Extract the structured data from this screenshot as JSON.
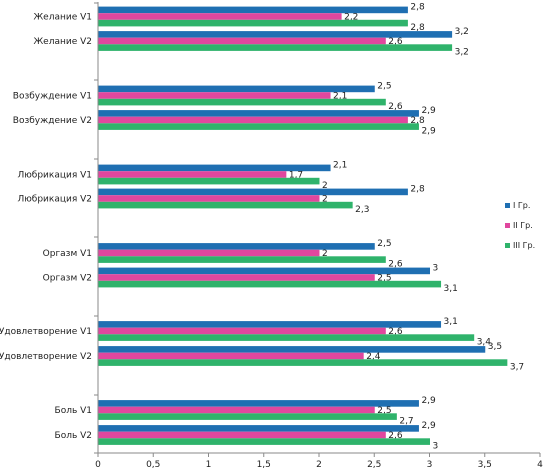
{
  "chart_data": {
    "type": "bar",
    "orientation": "horizontal",
    "categories": [
      "Желание V1",
      "Желание V2",
      "Возбуждение V1",
      "Возбуждение V2",
      "Любрикация V1",
      "Любрикация V2",
      "Оргазм V1",
      "Оргазм V2",
      "Удовлетворение V1",
      "Удовлетворение V2",
      "Боль V1",
      "Боль V2"
    ],
    "value_labels": [
      [
        "2,8",
        "2,2",
        "2,8"
      ],
      [
        "3,2",
        "2,6",
        "3,2"
      ],
      [
        "2,5",
        "2,1",
        "2,6"
      ],
      [
        "2,9",
        "2,8",
        "2,9"
      ],
      [
        "2,1",
        "1,7",
        "2"
      ],
      [
        "2,8",
        "2",
        "2,3"
      ],
      [
        "2,5",
        "2",
        "2,6"
      ],
      [
        "3",
        "2,5",
        "3,1"
      ],
      [
        "3,1",
        "2,6",
        "3,4"
      ],
      [
        "3,5",
        "2,4",
        "3,7"
      ],
      [
        "2,9",
        "2,5",
        "2,7"
      ],
      [
        "2,9",
        "2,6",
        "3"
      ]
    ],
    "series": [
      {
        "name": "I Гр.",
        "color": "#1f6fb2",
        "values": [
          2.8,
          3.2,
          2.5,
          2.9,
          2.1,
          2.8,
          2.5,
          3.0,
          3.1,
          3.5,
          2.9,
          2.9
        ]
      },
      {
        "name": "II Гр.",
        "color": "#e0479e",
        "values": [
          2.2,
          2.6,
          2.1,
          2.8,
          1.7,
          2.0,
          2.0,
          2.5,
          2.6,
          2.4,
          2.5,
          2.6
        ]
      },
      {
        "name": "III Гр.",
        "color": "#2fb36b",
        "values": [
          2.8,
          3.2,
          2.6,
          2.9,
          2.0,
          2.3,
          2.6,
          3.1,
          3.4,
          3.7,
          2.7,
          3.0
        ]
      }
    ],
    "xlim": [
      0,
      4
    ],
    "x_ticks": [
      0,
      0.5,
      1,
      1.5,
      2,
      2.5,
      3,
      3.5,
      4
    ],
    "x_tick_labels": [
      "0",
      "0,5",
      "1",
      "1,5",
      "2",
      "2,5",
      "3",
      "3,5",
      "4"
    ],
    "legend_position": "right",
    "grid": false
  }
}
